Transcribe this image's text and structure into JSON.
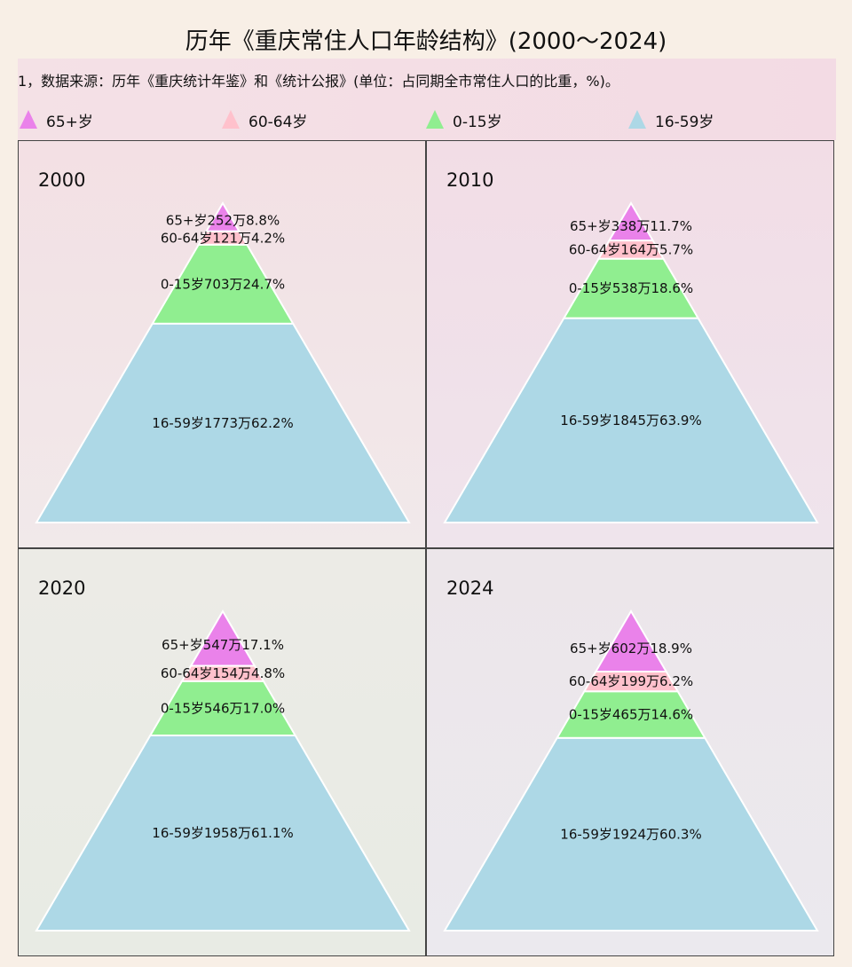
{
  "title": "历年《重庆常住人口年龄结构》(2000～2024)",
  "note": "1，数据来源：历年《重庆统计年鉴》和《统计公报》(单位：占同期全市常住人口的比重，%)。",
  "colors": {
    "65+岁": "#ea82ea",
    "60-64岁": "#ffc1cc",
    "0-15岁": "#90ee90",
    "16-59岁": "#add8e6"
  },
  "chart_data": {
    "type": "pyramid",
    "legend": [
      "65+岁",
      "60-64岁",
      "0-15岁",
      "16-59岁"
    ],
    "panels": [
      {
        "year": "2000",
        "segments": [
          {
            "group": "65+岁",
            "value_wan": 252,
            "percent": 8.8,
            "label": "65+岁252万8.8%"
          },
          {
            "group": "60-64岁",
            "value_wan": 121,
            "percent": 4.2,
            "label": "60-64岁121万4.2%"
          },
          {
            "group": "0-15岁",
            "value_wan": 703,
            "percent": 24.7,
            "label": "0-15岁703万24.7%"
          },
          {
            "group": "16-59岁",
            "value_wan": 1773,
            "percent": 62.2,
            "label": "16-59岁1773万62.2%"
          }
        ]
      },
      {
        "year": "2010",
        "segments": [
          {
            "group": "65+岁",
            "value_wan": 338,
            "percent": 11.7,
            "label": "65+岁338万11.7%"
          },
          {
            "group": "60-64岁",
            "value_wan": 164,
            "percent": 5.7,
            "label": "60-64岁164万5.7%"
          },
          {
            "group": "0-15岁",
            "value_wan": 538,
            "percent": 18.6,
            "label": "0-15岁538万18.6%"
          },
          {
            "group": "16-59岁",
            "value_wan": 1845,
            "percent": 63.9,
            "label": "16-59岁1845万63.9%"
          }
        ]
      },
      {
        "year": "2020",
        "segments": [
          {
            "group": "65+岁",
            "value_wan": 547,
            "percent": 17.1,
            "label": "65+岁547万17.1%"
          },
          {
            "group": "60-64岁",
            "value_wan": 154,
            "percent": 4.8,
            "label": "60-64岁154万4.8%"
          },
          {
            "group": "0-15岁",
            "value_wan": 546,
            "percent": 17.0,
            "label": "0-15岁546万17.0%"
          },
          {
            "group": "16-59岁",
            "value_wan": 1958,
            "percent": 61.1,
            "label": "16-59岁1958万61.1%"
          }
        ]
      },
      {
        "year": "2024",
        "segments": [
          {
            "group": "65+岁",
            "value_wan": 602,
            "percent": 18.9,
            "label": "65+岁602万18.9%"
          },
          {
            "group": "60-64岁",
            "value_wan": 199,
            "percent": 6.2,
            "label": "60-64岁199万6.2%"
          },
          {
            "group": "0-15岁",
            "value_wan": 465,
            "percent": 14.6,
            "label": "0-15岁465万14.6%"
          },
          {
            "group": "16-59岁",
            "value_wan": 1924,
            "percent": 60.3,
            "label": "16-59岁1924万60.3%"
          }
        ]
      }
    ]
  }
}
